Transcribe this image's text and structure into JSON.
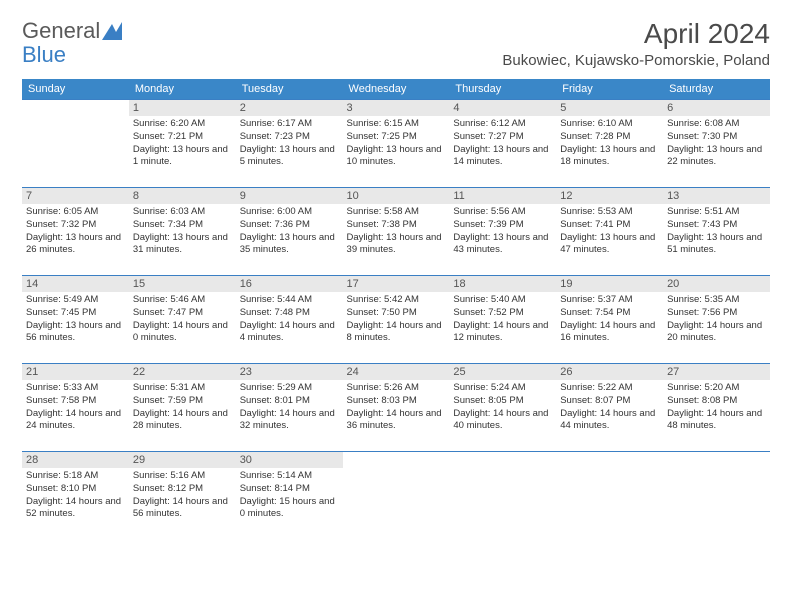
{
  "brand": {
    "part1": "General",
    "part2": "Blue"
  },
  "title": "April 2024",
  "location": "Bukowiec, Kujawsko-Pomorskie, Poland",
  "colors": {
    "header_bg": "#3a87c8",
    "header_text": "#ffffff",
    "daynum_bg": "#e8e8e8",
    "border": "#3a7fc4",
    "brand_gray": "#5a5a5a",
    "brand_blue": "#3a7fc4"
  },
  "weekdays": [
    "Sunday",
    "Monday",
    "Tuesday",
    "Wednesday",
    "Thursday",
    "Friday",
    "Saturday"
  ],
  "weeks": [
    [
      {
        "day": "",
        "text": ""
      },
      {
        "day": "1",
        "text": "Sunrise: 6:20 AM\nSunset: 7:21 PM\nDaylight: 13 hours and 1 minute."
      },
      {
        "day": "2",
        "text": "Sunrise: 6:17 AM\nSunset: 7:23 PM\nDaylight: 13 hours and 5 minutes."
      },
      {
        "day": "3",
        "text": "Sunrise: 6:15 AM\nSunset: 7:25 PM\nDaylight: 13 hours and 10 minutes."
      },
      {
        "day": "4",
        "text": "Sunrise: 6:12 AM\nSunset: 7:27 PM\nDaylight: 13 hours and 14 minutes."
      },
      {
        "day": "5",
        "text": "Sunrise: 6:10 AM\nSunset: 7:28 PM\nDaylight: 13 hours and 18 minutes."
      },
      {
        "day": "6",
        "text": "Sunrise: 6:08 AM\nSunset: 7:30 PM\nDaylight: 13 hours and 22 minutes."
      }
    ],
    [
      {
        "day": "7",
        "text": "Sunrise: 6:05 AM\nSunset: 7:32 PM\nDaylight: 13 hours and 26 minutes."
      },
      {
        "day": "8",
        "text": "Sunrise: 6:03 AM\nSunset: 7:34 PM\nDaylight: 13 hours and 31 minutes."
      },
      {
        "day": "9",
        "text": "Sunrise: 6:00 AM\nSunset: 7:36 PM\nDaylight: 13 hours and 35 minutes."
      },
      {
        "day": "10",
        "text": "Sunrise: 5:58 AM\nSunset: 7:38 PM\nDaylight: 13 hours and 39 minutes."
      },
      {
        "day": "11",
        "text": "Sunrise: 5:56 AM\nSunset: 7:39 PM\nDaylight: 13 hours and 43 minutes."
      },
      {
        "day": "12",
        "text": "Sunrise: 5:53 AM\nSunset: 7:41 PM\nDaylight: 13 hours and 47 minutes."
      },
      {
        "day": "13",
        "text": "Sunrise: 5:51 AM\nSunset: 7:43 PM\nDaylight: 13 hours and 51 minutes."
      }
    ],
    [
      {
        "day": "14",
        "text": "Sunrise: 5:49 AM\nSunset: 7:45 PM\nDaylight: 13 hours and 56 minutes."
      },
      {
        "day": "15",
        "text": "Sunrise: 5:46 AM\nSunset: 7:47 PM\nDaylight: 14 hours and 0 minutes."
      },
      {
        "day": "16",
        "text": "Sunrise: 5:44 AM\nSunset: 7:48 PM\nDaylight: 14 hours and 4 minutes."
      },
      {
        "day": "17",
        "text": "Sunrise: 5:42 AM\nSunset: 7:50 PM\nDaylight: 14 hours and 8 minutes."
      },
      {
        "day": "18",
        "text": "Sunrise: 5:40 AM\nSunset: 7:52 PM\nDaylight: 14 hours and 12 minutes."
      },
      {
        "day": "19",
        "text": "Sunrise: 5:37 AM\nSunset: 7:54 PM\nDaylight: 14 hours and 16 minutes."
      },
      {
        "day": "20",
        "text": "Sunrise: 5:35 AM\nSunset: 7:56 PM\nDaylight: 14 hours and 20 minutes."
      }
    ],
    [
      {
        "day": "21",
        "text": "Sunrise: 5:33 AM\nSunset: 7:58 PM\nDaylight: 14 hours and 24 minutes."
      },
      {
        "day": "22",
        "text": "Sunrise: 5:31 AM\nSunset: 7:59 PM\nDaylight: 14 hours and 28 minutes."
      },
      {
        "day": "23",
        "text": "Sunrise: 5:29 AM\nSunset: 8:01 PM\nDaylight: 14 hours and 32 minutes."
      },
      {
        "day": "24",
        "text": "Sunrise: 5:26 AM\nSunset: 8:03 PM\nDaylight: 14 hours and 36 minutes."
      },
      {
        "day": "25",
        "text": "Sunrise: 5:24 AM\nSunset: 8:05 PM\nDaylight: 14 hours and 40 minutes."
      },
      {
        "day": "26",
        "text": "Sunrise: 5:22 AM\nSunset: 8:07 PM\nDaylight: 14 hours and 44 minutes."
      },
      {
        "day": "27",
        "text": "Sunrise: 5:20 AM\nSunset: 8:08 PM\nDaylight: 14 hours and 48 minutes."
      }
    ],
    [
      {
        "day": "28",
        "text": "Sunrise: 5:18 AM\nSunset: 8:10 PM\nDaylight: 14 hours and 52 minutes."
      },
      {
        "day": "29",
        "text": "Sunrise: 5:16 AM\nSunset: 8:12 PM\nDaylight: 14 hours and 56 minutes."
      },
      {
        "day": "30",
        "text": "Sunrise: 5:14 AM\nSunset: 8:14 PM\nDaylight: 15 hours and 0 minutes."
      },
      {
        "day": "",
        "text": ""
      },
      {
        "day": "",
        "text": ""
      },
      {
        "day": "",
        "text": ""
      },
      {
        "day": "",
        "text": ""
      }
    ]
  ]
}
